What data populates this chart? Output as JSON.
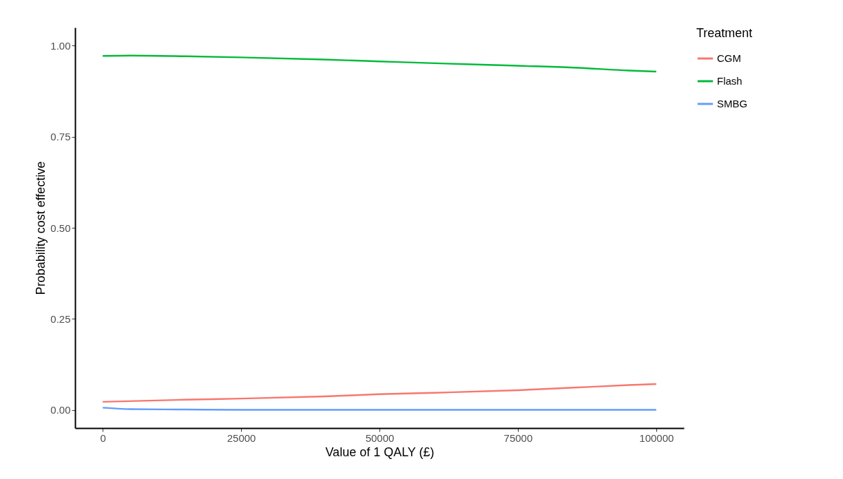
{
  "chart_data": {
    "type": "line",
    "xlabel": "Value of 1 QALY (£)",
    "ylabel": "Probability cost effective",
    "legend_title": "Treatment",
    "legend": "right",
    "grid": false,
    "xlim": [
      -5000,
      105000
    ],
    "xticks": [
      0,
      25000,
      50000,
      75000,
      100000
    ],
    "ylim": [
      -0.05,
      1.05
    ],
    "yticks": [
      {
        "value": 0,
        "label": "0.00"
      },
      {
        "value": 0.25,
        "label": "0.25"
      },
      {
        "value": 0.5,
        "label": "0.50"
      },
      {
        "value": 0.75,
        "label": "0.75"
      },
      {
        "value": 1,
        "label": "1.00"
      }
    ],
    "series": [
      {
        "name": "CGM",
        "color": "#f8766d",
        "x": [
          0,
          15000,
          25000,
          40000,
          50000,
          60000,
          75000,
          85000,
          95000,
          100000
        ],
        "values": [
          0.022,
          0.028,
          0.031,
          0.037,
          0.043,
          0.047,
          0.054,
          0.061,
          0.068,
          0.071
        ]
      },
      {
        "name": "Flash",
        "color": "#00ba38",
        "x": [
          0,
          5000,
          15000,
          25000,
          40000,
          50000,
          60000,
          75000,
          85000,
          95000,
          100000
        ],
        "values": [
          0.972,
          0.973,
          0.971,
          0.968,
          0.962,
          0.957,
          0.952,
          0.945,
          0.94,
          0.932,
          0.929
        ]
      },
      {
        "name": "SMBG",
        "color": "#619cff",
        "x": [
          0,
          5000,
          15000,
          25000,
          50000,
          75000,
          100000
        ],
        "values": [
          0.006,
          0.002,
          0.001,
          0,
          0,
          0,
          0
        ]
      }
    ]
  }
}
